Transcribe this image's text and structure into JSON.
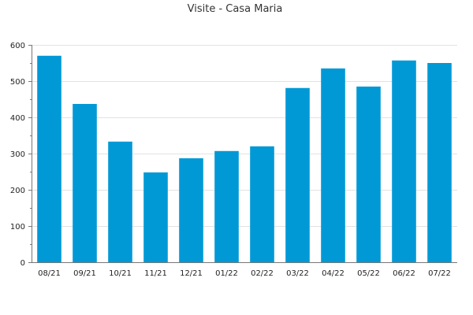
{
  "chart_data": {
    "type": "bar",
    "title": "Visite - Casa Maria",
    "xlabel": "",
    "ylabel": "",
    "categories": [
      "08/21",
      "09/21",
      "10/21",
      "11/21",
      "12/21",
      "01/22",
      "02/22",
      "03/22",
      "04/22",
      "05/22",
      "06/22",
      "07/22"
    ],
    "values": [
      570,
      437,
      333,
      248,
      287,
      307,
      320,
      481,
      535,
      485,
      557,
      550
    ],
    "ylim": [
      0,
      600
    ],
    "yticks": [
      0,
      100,
      200,
      300,
      400,
      500,
      600
    ],
    "grid": true,
    "legend": "none",
    "bar_color": "#0099d6",
    "grid_color": "#e2e2e2",
    "axis_color": "#777777"
  }
}
